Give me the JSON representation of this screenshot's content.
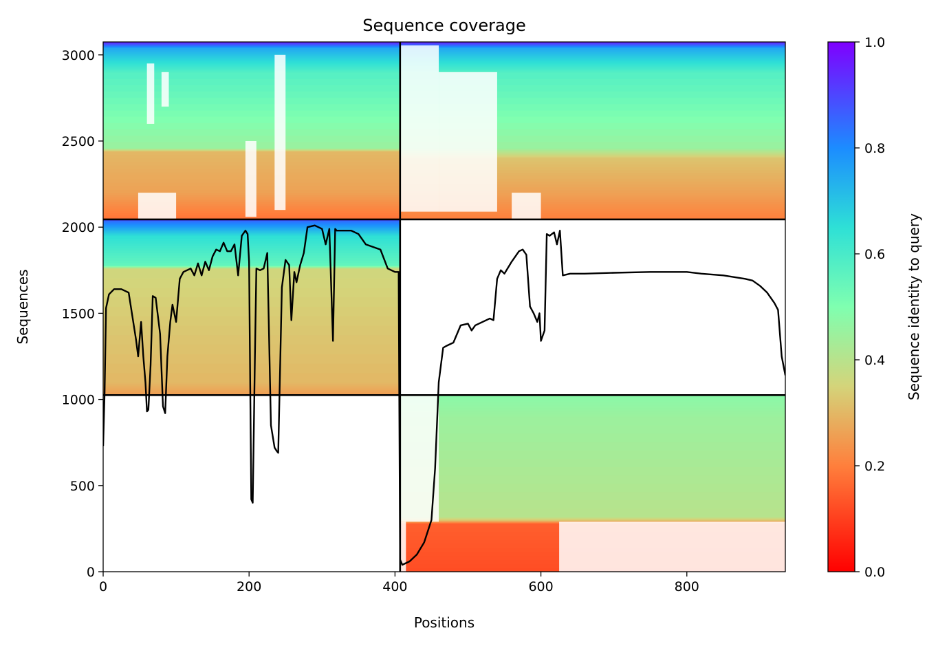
{
  "chart_data": {
    "type": "heatmap",
    "title": "Sequence coverage",
    "xlabel": "Positions",
    "ylabel": "Sequences",
    "xlim": [
      0,
      935
    ],
    "ylim": [
      0,
      3075
    ],
    "xticks": [
      0,
      200,
      400,
      600,
      800
    ],
    "yticks": [
      0,
      500,
      1000,
      1500,
      2000,
      2500,
      3000
    ],
    "colorbar": {
      "label": "Sequence identity to query",
      "range": [
        0.0,
        1.0
      ],
      "ticks": [
        "0.0",
        "0.2",
        "0.4",
        "0.6",
        "0.8",
        "1.0"
      ],
      "colormap": "rainbow"
    },
    "chain_boundaries": {
      "x": [
        407
      ],
      "y": [
        1025,
        2045
      ]
    },
    "blocks": [
      {
        "name": "top-left",
        "x": [
          0,
          407
        ],
        "y": [
          2045,
          3075
        ],
        "identity_bands": [
          [
            2045,
            0.18
          ],
          [
            2200,
            0.26
          ],
          [
            2440,
            0.3
          ],
          [
            2460,
            0.45
          ],
          [
            2900,
            0.58
          ],
          [
            3040,
            0.75
          ],
          [
            3075,
            0.95
          ]
        ]
      },
      {
        "name": "top-right",
        "x": [
          407,
          935
        ],
        "y": [
          2045,
          3075
        ],
        "identity_bands": [
          [
            2045,
            0.2
          ],
          [
            2200,
            0.26
          ],
          [
            2400,
            0.32
          ],
          [
            2460,
            0.45
          ],
          [
            2900,
            0.58
          ],
          [
            3040,
            0.75
          ],
          [
            3075,
            0.95
          ]
        ]
      },
      {
        "name": "middle-left",
        "x": [
          0,
          407
        ],
        "y": [
          1025,
          2045
        ],
        "identity_bands": [
          [
            1025,
            0.25
          ],
          [
            1100,
            0.3
          ],
          [
            1760,
            0.36
          ],
          [
            1780,
            0.55
          ],
          [
            1950,
            0.65
          ],
          [
            2040,
            0.85
          ],
          [
            2045,
            0.9
          ]
        ]
      },
      {
        "name": "bottom-right",
        "x": [
          407,
          935
        ],
        "y": [
          0,
          1025
        ],
        "identity_bands": [
          [
            0,
            0.12
          ],
          [
            280,
            0.15
          ],
          [
            300,
            0.32
          ],
          [
            320,
            0.4
          ],
          [
            900,
            0.45
          ],
          [
            1025,
            0.48
          ]
        ]
      }
    ],
    "coverage_line": {
      "x": [
        0,
        2,
        4,
        8,
        15,
        25,
        35,
        45,
        48,
        52,
        55,
        58,
        60,
        62,
        65,
        68,
        72,
        78,
        82,
        85,
        88,
        92,
        95,
        100,
        105,
        110,
        120,
        125,
        130,
        135,
        140,
        145,
        150,
        155,
        160,
        165,
        170,
        175,
        180,
        185,
        190,
        195,
        198,
        200,
        203,
        205,
        208,
        210,
        215,
        220,
        225,
        230,
        235,
        238,
        240,
        245,
        250,
        255,
        258,
        262,
        265,
        270,
        275,
        280,
        290,
        300,
        305,
        310,
        315,
        318,
        320,
        325,
        340,
        350,
        360,
        380,
        390,
        400,
        405,
        407,
        410,
        420,
        430,
        440,
        450,
        455,
        460,
        463,
        466,
        470,
        480,
        490,
        500,
        505,
        510,
        520,
        530,
        535,
        540,
        545,
        550,
        560,
        570,
        575,
        580,
        585,
        590,
        595,
        598,
        600,
        605,
        608,
        612,
        618,
        622,
        626,
        630,
        640,
        660,
        700,
        750,
        800,
        820,
        850,
        880,
        890,
        900,
        910,
        920,
        925,
        930,
        935
      ],
      "y": [
        730,
        1040,
        1530,
        1610,
        1640,
        1640,
        1620,
        1350,
        1250,
        1450,
        1250,
        1100,
        930,
        940,
        1200,
        1600,
        1590,
        1380,
        960,
        920,
        1250,
        1450,
        1550,
        1450,
        1700,
        1740,
        1760,
        1720,
        1790,
        1720,
        1800,
        1750,
        1830,
        1870,
        1860,
        1910,
        1860,
        1860,
        1900,
        1720,
        1950,
        1980,
        1960,
        1800,
        420,
        400,
        1250,
        1760,
        1750,
        1760,
        1850,
        850,
        720,
        700,
        690,
        1650,
        1810,
        1780,
        1460,
        1740,
        1680,
        1780,
        1850,
        2000,
        2010,
        1990,
        1900,
        1990,
        1340,
        1990,
        1980,
        1980,
        1980,
        1960,
        1900,
        1870,
        1760,
        1740,
        1740,
        70,
        40,
        60,
        100,
        170,
        300,
        600,
        1100,
        1200,
        1300,
        1310,
        1330,
        1430,
        1440,
        1400,
        1430,
        1450,
        1470,
        1460,
        1700,
        1750,
        1730,
        1800,
        1860,
        1870,
        1840,
        1540,
        1500,
        1450,
        1500,
        1340,
        1400,
        1960,
        1950,
        1970,
        1900,
        1980,
        1720,
        1730,
        1730,
        1735,
        1740,
        1740,
        1730,
        1720,
        1700,
        1690,
        1660,
        1620,
        1560,
        1520,
        1250,
        1140
      ]
    }
  }
}
